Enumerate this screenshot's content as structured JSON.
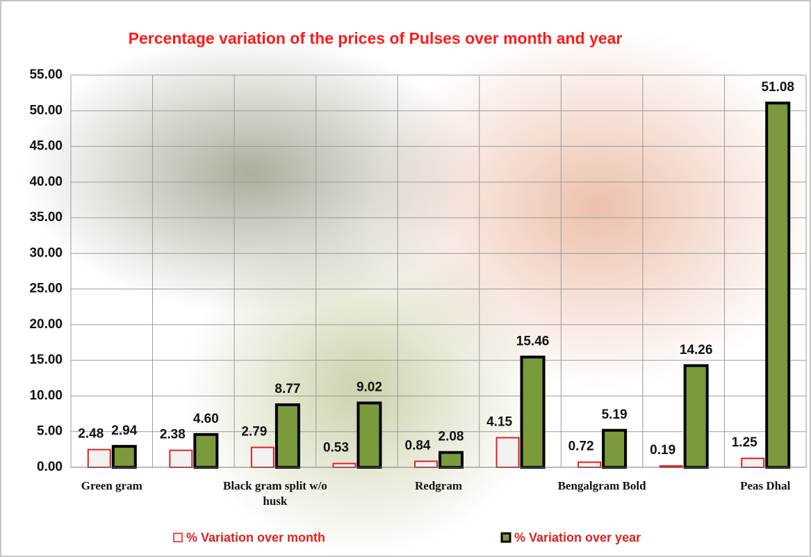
{
  "chart_data": {
    "type": "bar",
    "title": "Percentage variation of the prices of Pulses over month and year",
    "categories": [
      "Green gram",
      null,
      "Black gram  split w/o husk",
      null,
      "Redgram",
      null,
      "Bengalgram Bold",
      null,
      "Peas Dhal"
    ],
    "series": [
      {
        "name": "% Variation over month",
        "color": "#f2f2f2",
        "edge": "#e02020",
        "values": [
          2.48,
          2.38,
          2.79,
          0.53,
          0.84,
          4.15,
          0.72,
          0.19,
          1.25
        ],
        "value_labels": [
          "2.48",
          "2.38",
          "2.79",
          "0.53",
          "0.84",
          "4.15",
          "0.72",
          "0.19",
          "1.25"
        ]
      },
      {
        "name": "% Variation over year",
        "color": "#7a9a3c",
        "edge": "#000000",
        "values": [
          2.94,
          4.6,
          8.77,
          9.02,
          2.08,
          15.46,
          5.19,
          14.26,
          51.08
        ],
        "value_labels": [
          "2.94",
          "4.60",
          "8.77",
          "9.02",
          "2.08",
          "15.46",
          "5.19",
          "14.26",
          "51.08"
        ]
      }
    ],
    "ylim": [
      0,
      55
    ],
    "yticks": [
      {
        "value": 0,
        "label": "0.00"
      },
      {
        "value": 5,
        "label": "5.00"
      },
      {
        "value": 10,
        "label": "10.00"
      },
      {
        "value": 15,
        "label": "15.00"
      },
      {
        "value": 20,
        "label": "20.00"
      },
      {
        "value": 25,
        "label": "25.00"
      },
      {
        "value": 30,
        "label": "30.00"
      },
      {
        "value": 35,
        "label": "35.00"
      },
      {
        "value": 40,
        "label": "40.00"
      },
      {
        "value": 45,
        "label": "45.00"
      },
      {
        "value": 50,
        "label": "50.00"
      },
      {
        "value": 55,
        "label": "55.00"
      }
    ],
    "grid": true,
    "legend": "bottom"
  }
}
